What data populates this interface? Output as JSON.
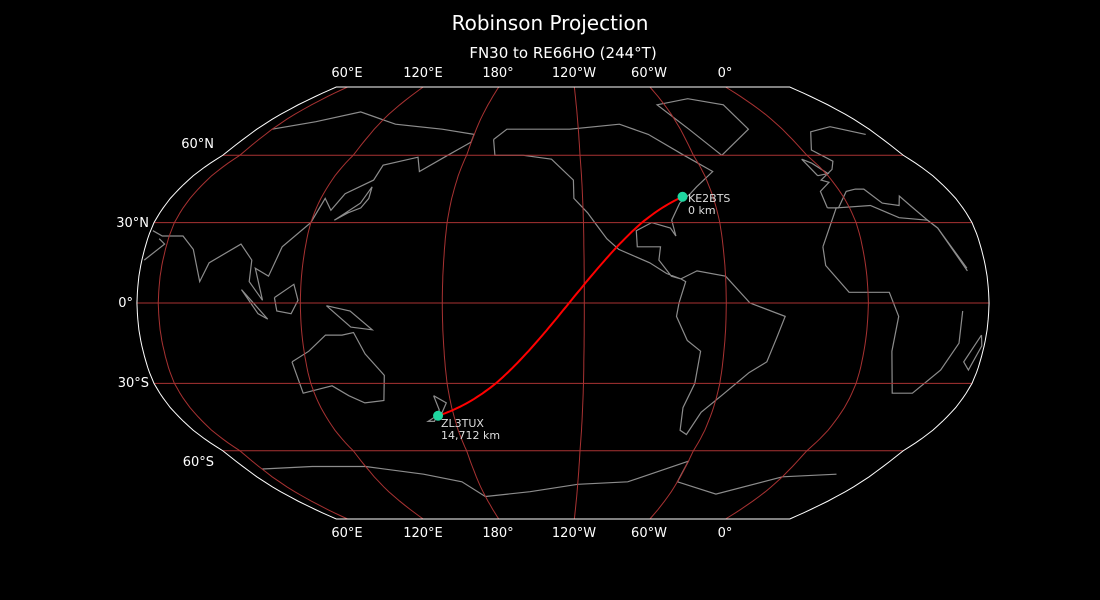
{
  "title": "Robinson Projection",
  "subtitle": "FN30 to RE66HO (244°T)",
  "lon_labels": [
    "60°E",
    "120°E",
    "180°",
    "120°W",
    "60°W",
    "0°"
  ],
  "lat_labels": [
    "60°N",
    "30°N",
    "0°",
    "30°S",
    "60°S"
  ],
  "stations": [
    {
      "call": "KE2BTS",
      "distance": "0 km",
      "lat": 40.7,
      "lon": -74.0
    },
    {
      "call": "ZL3TUX",
      "distance": "14,712 km",
      "lat": -43.5,
      "lon": 172.6
    }
  ],
  "map": {
    "projection": "Robinson",
    "central_longitude": -129,
    "graticule_lats": [
      -60,
      -30,
      0,
      30,
      60
    ],
    "graticule_lons": [
      0,
      60,
      120,
      180,
      -120,
      -60
    ]
  },
  "colors": {
    "background": "#000000",
    "graticule": "#a83232",
    "coastline": "#8c8c8c",
    "outline": "#ffffff",
    "path": "#ff0000",
    "marker": "#1fd6a0"
  }
}
